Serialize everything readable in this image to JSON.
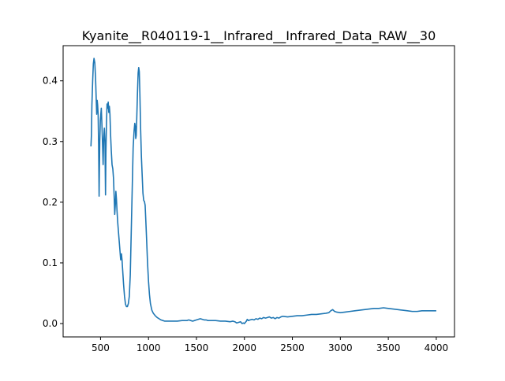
{
  "chart_data": {
    "type": "line",
    "title": "Kyanite__R040119-1__Infrared__Infrared_Data_RAW__30",
    "xlabel": "",
    "ylabel": "",
    "xlim": [
      110,
      4190
    ],
    "ylim": [
      -0.022,
      0.458
    ],
    "x_ticks": [
      500,
      1000,
      1500,
      2000,
      2500,
      3000,
      3500,
      4000
    ],
    "y_ticks": [
      0.0,
      0.1,
      0.2,
      0.3,
      0.4
    ],
    "grid": false,
    "legend": "none",
    "series": [
      {
        "color": "#1f77b4",
        "points": [
          [
            400,
            0.292
          ],
          [
            405,
            0.31
          ],
          [
            410,
            0.36
          ],
          [
            418,
            0.4
          ],
          [
            425,
            0.428
          ],
          [
            432,
            0.437
          ],
          [
            440,
            0.43
          ],
          [
            448,
            0.405
          ],
          [
            455,
            0.37
          ],
          [
            460,
            0.345
          ],
          [
            465,
            0.368
          ],
          [
            470,
            0.36
          ],
          [
            475,
            0.345
          ],
          [
            480,
            0.295
          ],
          [
            485,
            0.21
          ],
          [
            488,
            0.25
          ],
          [
            492,
            0.3
          ],
          [
            498,
            0.335
          ],
          [
            503,
            0.345
          ],
          [
            508,
            0.355
          ],
          [
            514,
            0.33
          ],
          [
            520,
            0.3
          ],
          [
            527,
            0.262
          ],
          [
            533,
            0.305
          ],
          [
            540,
            0.322
          ],
          [
            546,
            0.3
          ],
          [
            552,
            0.212
          ],
          [
            556,
            0.28
          ],
          [
            562,
            0.33
          ],
          [
            568,
            0.362
          ],
          [
            574,
            0.355
          ],
          [
            580,
            0.365
          ],
          [
            586,
            0.348
          ],
          [
            592,
            0.358
          ],
          [
            598,
            0.345
          ],
          [
            605,
            0.31
          ],
          [
            612,
            0.285
          ],
          [
            620,
            0.262
          ],
          [
            628,
            0.255
          ],
          [
            635,
            0.24
          ],
          [
            642,
            0.21
          ],
          [
            648,
            0.18
          ],
          [
            654,
            0.195
          ],
          [
            660,
            0.218
          ],
          [
            666,
            0.205
          ],
          [
            672,
            0.185
          ],
          [
            680,
            0.165
          ],
          [
            690,
            0.145
          ],
          [
            700,
            0.125
          ],
          [
            710,
            0.105
          ],
          [
            718,
            0.115
          ],
          [
            724,
            0.105
          ],
          [
            730,
            0.09
          ],
          [
            740,
            0.065
          ],
          [
            750,
            0.045
          ],
          [
            760,
            0.032
          ],
          [
            770,
            0.028
          ],
          [
            780,
            0.028
          ],
          [
            790,
            0.033
          ],
          [
            800,
            0.045
          ],
          [
            810,
            0.08
          ],
          [
            820,
            0.15
          ],
          [
            830,
            0.22
          ],
          [
            840,
            0.29
          ],
          [
            850,
            0.318
          ],
          [
            857,
            0.33
          ],
          [
            862,
            0.325
          ],
          [
            867,
            0.305
          ],
          [
            872,
            0.31
          ],
          [
            878,
            0.34
          ],
          [
            885,
            0.38
          ],
          [
            892,
            0.413
          ],
          [
            898,
            0.422
          ],
          [
            904,
            0.415
          ],
          [
            910,
            0.38
          ],
          [
            918,
            0.32
          ],
          [
            926,
            0.275
          ],
          [
            934,
            0.245
          ],
          [
            942,
            0.215
          ],
          [
            950,
            0.203
          ],
          [
            958,
            0.201
          ],
          [
            965,
            0.195
          ],
          [
            972,
            0.17
          ],
          [
            980,
            0.14
          ],
          [
            990,
            0.1
          ],
          [
            1000,
            0.07
          ],
          [
            1010,
            0.048
          ],
          [
            1020,
            0.033
          ],
          [
            1035,
            0.022
          ],
          [
            1050,
            0.017
          ],
          [
            1070,
            0.013
          ],
          [
            1090,
            0.01
          ],
          [
            1110,
            0.008
          ],
          [
            1130,
            0.006
          ],
          [
            1150,
            0.005
          ],
          [
            1170,
            0.004
          ],
          [
            1190,
            0.004
          ],
          [
            1210,
            0.004
          ],
          [
            1250,
            0.004
          ],
          [
            1300,
            0.004
          ],
          [
            1350,
            0.005
          ],
          [
            1400,
            0.005
          ],
          [
            1420,
            0.006
          ],
          [
            1440,
            0.005
          ],
          [
            1460,
            0.004
          ],
          [
            1480,
            0.005
          ],
          [
            1500,
            0.006
          ],
          [
            1520,
            0.007
          ],
          [
            1540,
            0.008
          ],
          [
            1560,
            0.007
          ],
          [
            1580,
            0.006
          ],
          [
            1600,
            0.006
          ],
          [
            1620,
            0.005
          ],
          [
            1650,
            0.005
          ],
          [
            1700,
            0.005
          ],
          [
            1750,
            0.004
          ],
          [
            1800,
            0.004
          ],
          [
            1850,
            0.003
          ],
          [
            1880,
            0.004
          ],
          [
            1900,
            0.003
          ],
          [
            1920,
            0.001
          ],
          [
            1940,
            0.002
          ],
          [
            1960,
            0.003
          ],
          [
            1975,
            0.0
          ],
          [
            1990,
            0.001
          ],
          [
            2000,
            0.0
          ],
          [
            2010,
            0.002
          ],
          [
            2020,
            0.004
          ],
          [
            2030,
            0.007
          ],
          [
            2040,
            0.005
          ],
          [
            2060,
            0.006
          ],
          [
            2080,
            0.007
          ],
          [
            2100,
            0.006
          ],
          [
            2120,
            0.008
          ],
          [
            2140,
            0.007
          ],
          [
            2160,
            0.009
          ],
          [
            2180,
            0.008
          ],
          [
            2200,
            0.01
          ],
          [
            2220,
            0.009
          ],
          [
            2240,
            0.01
          ],
          [
            2260,
            0.011
          ],
          [
            2280,
            0.009
          ],
          [
            2300,
            0.01
          ],
          [
            2320,
            0.008
          ],
          [
            2340,
            0.01
          ],
          [
            2360,
            0.009
          ],
          [
            2380,
            0.011
          ],
          [
            2400,
            0.012
          ],
          [
            2450,
            0.011
          ],
          [
            2500,
            0.012
          ],
          [
            2550,
            0.013
          ],
          [
            2600,
            0.013
          ],
          [
            2650,
            0.014
          ],
          [
            2700,
            0.015
          ],
          [
            2750,
            0.015
          ],
          [
            2800,
            0.016
          ],
          [
            2850,
            0.017
          ],
          [
            2880,
            0.018
          ],
          [
            2900,
            0.021
          ],
          [
            2920,
            0.023
          ],
          [
            2940,
            0.02
          ],
          [
            2960,
            0.019
          ],
          [
            3000,
            0.018
          ],
          [
            3050,
            0.019
          ],
          [
            3100,
            0.02
          ],
          [
            3150,
            0.021
          ],
          [
            3200,
            0.022
          ],
          [
            3250,
            0.023
          ],
          [
            3300,
            0.024
          ],
          [
            3350,
            0.025
          ],
          [
            3400,
            0.025
          ],
          [
            3450,
            0.026
          ],
          [
            3500,
            0.025
          ],
          [
            3550,
            0.024
          ],
          [
            3600,
            0.023
          ],
          [
            3650,
            0.022
          ],
          [
            3700,
            0.021
          ],
          [
            3750,
            0.02
          ],
          [
            3800,
            0.02
          ],
          [
            3850,
            0.021
          ],
          [
            3900,
            0.021
          ],
          [
            3950,
            0.021
          ],
          [
            4000,
            0.021
          ]
        ]
      }
    ]
  }
}
